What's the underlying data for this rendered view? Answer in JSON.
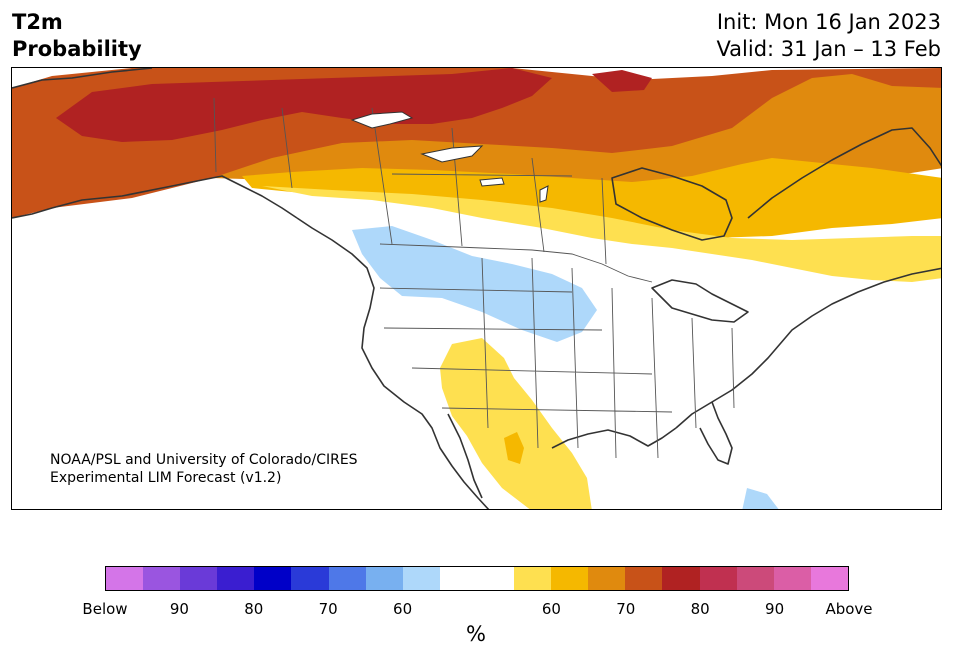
{
  "header": {
    "variable": "T2m",
    "product": "Probability",
    "init": "Init: Mon 16 Jan 2023",
    "valid": "Valid: 31 Jan – 13 Feb"
  },
  "map": {
    "credit_line1": "NOAA/PSL and University of Colorado/CIRES",
    "credit_line2": "Experimental LIM Forecast (v1.2)"
  },
  "colorbar": {
    "unit": "%",
    "colors": [
      "#d475e8",
      "#9a55e0",
      "#6a3ad8",
      "#3a1ed0",
      "#0000c8",
      "#2a3ad8",
      "#4e78e8",
      "#78b0f0",
      "#aed8fa",
      "#ffffff",
      "#ffffff",
      "#fee050",
      "#f5b800",
      "#e08a0e",
      "#c85218",
      "#b02222",
      "#c03050",
      "#cc4a7a",
      "#db5ea6",
      "#e878dc"
    ],
    "ticks": [
      "Below",
      "90",
      "80",
      "70",
      "60",
      "60",
      "70",
      "80",
      "90",
      "Above"
    ],
    "colors_meaning": {
      "below_60": "#aed8fa",
      "below_70": "#78b0f0",
      "above_60": "#fee050",
      "above_70": "#f5b800",
      "above_80": "#e08a0e",
      "above_90": "#c85218",
      "above_max": "#b02222"
    }
  }
}
